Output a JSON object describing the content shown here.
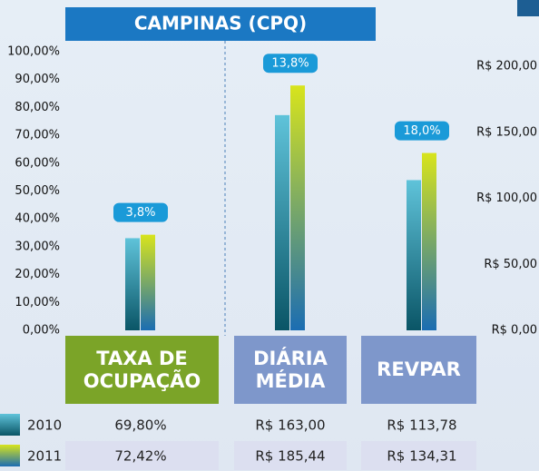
{
  "chart_data": {
    "type": "bar",
    "title": "CAMPINAS (CPQ)",
    "categories": [
      "TAXA DE OCUPAÇÃO",
      "DIÁRIA MÉDIA",
      "REVPAR"
    ],
    "category_colors": [
      "#7ba428",
      "#7e97cb",
      "#7e97cb"
    ],
    "annotations": [
      "3,8%",
      "13,8%",
      "18,0%"
    ],
    "series": [
      {
        "name": "2010",
        "color": "#5fc3da",
        "axis": "y2",
        "values": [
          69.8,
          163,
          113.78
        ],
        "value_labels": [
          "69,80%",
          "R$ 163,00",
          "R$ 113,78"
        ]
      },
      {
        "name": "2011",
        "color": "#d8e41c",
        "axis": "y2",
        "values": [
          72.42,
          185.44,
          134.31
        ],
        "value_labels": [
          "72,42%",
          "R$ 185,44",
          "R$ 134,31"
        ]
      }
    ],
    "ylim": [
      0,
      100
    ],
    "yticks": [
      {
        "value": 0,
        "label": "0,00%"
      },
      {
        "value": 10,
        "label": "10,00%"
      },
      {
        "value": 20,
        "label": "20,00%"
      },
      {
        "value": 30,
        "label": "30,00%"
      },
      {
        "value": 40,
        "label": "40,00%"
      },
      {
        "value": 50,
        "label": "50,00%"
      },
      {
        "value": 60,
        "label": "60,00%"
      },
      {
        "value": 70,
        "label": "70,00%"
      },
      {
        "value": 80,
        "label": "80,00%"
      },
      {
        "value": 90,
        "label": "90,00%"
      },
      {
        "value": 100,
        "label": "100,00%"
      }
    ],
    "y2lim": [
      0,
      211
    ],
    "y2ticks": [
      {
        "value": 0,
        "label": "R$ 0,00"
      },
      {
        "value": 50,
        "label": "R$ 50,00"
      },
      {
        "value": 100,
        "label": "R$ 100,00"
      },
      {
        "value": 150,
        "label": "R$ 150,00"
      },
      {
        "value": 200,
        "label": "R$ 200,00"
      }
    ]
  }
}
